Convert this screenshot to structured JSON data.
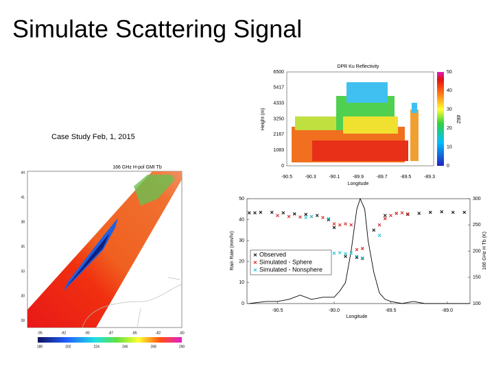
{
  "title": "Simulate Scattering Signal",
  "subtitle": "Case Study Feb, 1, 2015",
  "dpr_figure": {
    "title": "DPR Ku Reflectivity",
    "ylabel": "Height (m)",
    "xlabel": "Longitude",
    "colorbar_label": "dBZ",
    "yticks": [
      "6500",
      "5417",
      "4333",
      "3250",
      "2167",
      "1083",
      "0"
    ],
    "xticks": [
      "-90.5",
      "-90.3",
      "-90.1",
      "-89.9",
      "-89.7",
      "-89.5",
      "-89.3"
    ],
    "colorbar_ticks": [
      "50",
      "40",
      "30",
      "20",
      "10",
      "0"
    ]
  },
  "gmi_figure": {
    "title": "166 GHz H-pol GMI Tb",
    "yticks": [
      "44",
      "41",
      "38",
      "35",
      "33",
      "30",
      "28"
    ],
    "xticks": [
      "-95",
      "-92",
      "-90",
      "-87",
      "-85",
      "-82",
      "-80"
    ],
    "colorbar_ticks": [
      "180",
      "202",
      "224",
      "246",
      "268",
      "290"
    ]
  },
  "chart_data": {
    "type": "line",
    "xlabel": "Longitude",
    "ylabel": "Rain Rate (mm/hr)",
    "y2label": "166 GHz H Tb (K)",
    "xlim": [
      -90.77,
      -88.8
    ],
    "ylim": [
      0,
      50
    ],
    "y2lim": [
      100,
      300
    ],
    "xticks": [
      -90.5,
      {
        "value": -90,
        "label": "-90.0"
      },
      -89.5,
      {
        "value": -89,
        "label": "-89.0"
      }
    ],
    "yticks": [
      0,
      10,
      20,
      30,
      40,
      50
    ],
    "y2ticks": [
      100,
      150,
      200,
      250,
      300
    ],
    "rain": {
      "color": "#000000",
      "x": [
        -90.75,
        -90.6,
        -90.5,
        -90.4,
        -90.3,
        -90.2,
        -90.1,
        -90.0,
        -89.95,
        -89.9,
        -89.85,
        -89.8,
        -89.77,
        -89.73,
        -89.7,
        -89.65,
        -89.6,
        -89.55,
        -89.5,
        -89.4,
        -89.3,
        -89.2,
        -89.0,
        -88.8
      ],
      "values": [
        0,
        1,
        1,
        2,
        4,
        2,
        3,
        3,
        6,
        10,
        25,
        45,
        50,
        45,
        30,
        15,
        5,
        2,
        1,
        0,
        1,
        0,
        0,
        0
      ]
    },
    "series": [
      {
        "name": "Observed",
        "color": "#111111",
        "axis": "y2",
        "x": [
          -90.75,
          -90.7,
          -90.65,
          -90.55,
          -90.45,
          -90.35,
          -90.25,
          -90.15,
          -90.05,
          -90.0,
          -89.9,
          -89.8,
          -89.75,
          -89.65,
          -89.55,
          -89.45,
          -89.35,
          -89.25,
          -89.15,
          -89.05,
          -88.95,
          -88.85
        ],
        "values": [
          273,
          273,
          274,
          274,
          273,
          271,
          270,
          268,
          260,
          245,
          190,
          188,
          186,
          240,
          268,
          272,
          270,
          272,
          274,
          275,
          274,
          274
        ]
      },
      {
        "name": "Simulated - Sphere",
        "color": "#d62728",
        "axis": "y2",
        "x": [
          -90.5,
          -90.4,
          -90.3,
          -90.2,
          -90.1,
          -90.0,
          -89.95,
          -89.9,
          -89.85,
          -89.8,
          -89.75,
          -89.6,
          -89.55,
          -89.5,
          -89.45,
          -89.4,
          -89.35
        ],
        "values": [
          268,
          266,
          265,
          266,
          264,
          252,
          250,
          252,
          250,
          203,
          205,
          250,
          262,
          268,
          272,
          273,
          271
        ]
      },
      {
        "name": "Simulated - Nonsphere",
        "color": "#2cc4d4",
        "axis": "y2",
        "x": [
          -90.25,
          -90.2,
          -90.05,
          -90.0,
          -89.95,
          -89.9,
          -89.85,
          -89.8,
          -89.75,
          -89.6
        ],
        "values": [
          264,
          266,
          262,
          196,
          197,
          195,
          196,
          190,
          187,
          230
        ]
      }
    ]
  }
}
